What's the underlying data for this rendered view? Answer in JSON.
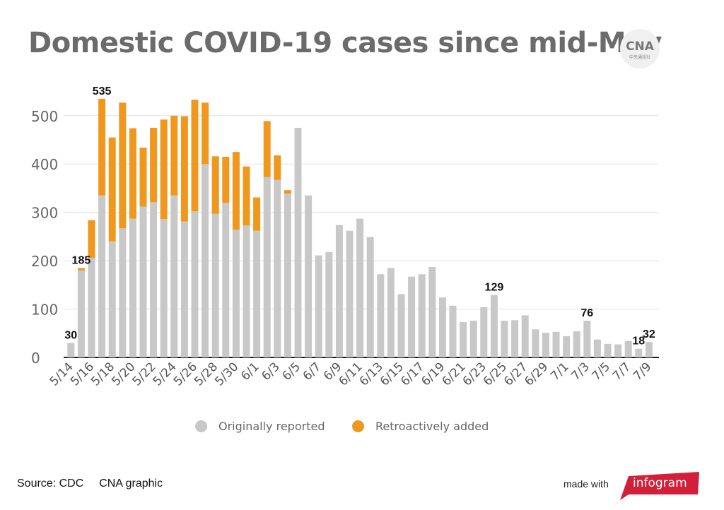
{
  "header": {
    "title": "Domestic COVID-19 cases since mid-May"
  },
  "logo": {
    "icon": "cna-logo-icon",
    "text": "CNA",
    "subtext": "中央通訊社"
  },
  "footer": {
    "source": "Source: CDC",
    "credit": "CNA graphic",
    "made_with": "made with",
    "brand": "infogram",
    "brand_color": "#d3203a"
  },
  "chart_data": {
    "type": "bar",
    "stacked": true,
    "title": "Domestic COVID-19 cases since mid-May",
    "xlabel": "",
    "ylabel": "",
    "ylim": [
      0,
      550
    ],
    "yticks": [
      0,
      100,
      200,
      300,
      400,
      500
    ],
    "grid": true,
    "legend_position": "bottom",
    "categories": [
      "5/14",
      "5/15",
      "5/16",
      "5/17",
      "5/18",
      "5/19",
      "5/20",
      "5/21",
      "5/22",
      "5/23",
      "5/24",
      "5/25",
      "5/26",
      "5/27",
      "5/28",
      "5/29",
      "5/30",
      "5/31",
      "6/1",
      "6/2",
      "6/3",
      "6/4",
      "6/5",
      "6/6",
      "6/7",
      "6/8",
      "6/9",
      "6/10",
      "6/11",
      "6/12",
      "6/13",
      "6/14",
      "6/15",
      "6/16",
      "6/17",
      "6/18",
      "6/19",
      "6/20",
      "6/21",
      "6/22",
      "6/23",
      "6/24",
      "6/25",
      "6/26",
      "6/27",
      "6/28",
      "6/29",
      "6/30",
      "7/1",
      "7/2",
      "7/3",
      "7/4",
      "7/5",
      "7/6",
      "7/7",
      "7/8",
      "7/9"
    ],
    "tick_labels": [
      "5/14",
      "5/16",
      "5/18",
      "5/20",
      "5/22",
      "5/24",
      "5/26",
      "5/28",
      "5/30",
      "6/1",
      "6/3",
      "6/5",
      "6/7",
      "6/9",
      "6/11",
      "6/13",
      "6/15",
      "6/17",
      "6/19",
      "6/21",
      "6/23",
      "6/25",
      "6/27",
      "6/29",
      "7/1",
      "7/3",
      "7/5",
      "7/7",
      "7/9"
    ],
    "series": [
      {
        "name": "Originally reported",
        "color": "#c8c8c8",
        "values": [
          30,
          180,
          206,
          335,
          240,
          267,
          287,
          312,
          321,
          286,
          335,
          281,
          302,
          400,
          297,
          320,
          264,
          273,
          262,
          373,
          367,
          339,
          475,
          335,
          211,
          218,
          274,
          262,
          287,
          249,
          172,
          185,
          131,
          167,
          172,
          187,
          124,
          107,
          73,
          76,
          104,
          129,
          76,
          77,
          87,
          58,
          51,
          53,
          44,
          54,
          76,
          37,
          28,
          27,
          34,
          18,
          32
        ]
      },
      {
        "name": "Retroactively added",
        "color": "#f0981e",
        "values": [
          0,
          5,
          78,
          200,
          215,
          260,
          187,
          122,
          154,
          206,
          165,
          218,
          231,
          127,
          119,
          95,
          161,
          122,
          69,
          116,
          51,
          7,
          0,
          0,
          0,
          0,
          0,
          0,
          0,
          0,
          0,
          0,
          0,
          0,
          0,
          0,
          0,
          0,
          0,
          0,
          0,
          0,
          0,
          0,
          0,
          0,
          0,
          0,
          0,
          0,
          0,
          0,
          0,
          0,
          0,
          0,
          0
        ]
      }
    ],
    "data_labels": [
      {
        "category": "5/14",
        "text": "30"
      },
      {
        "category": "5/15",
        "text": "185"
      },
      {
        "category": "5/17",
        "text": "535"
      },
      {
        "category": "6/24",
        "text": "129"
      },
      {
        "category": "7/3",
        "text": "76"
      },
      {
        "category": "7/8",
        "text": "18"
      },
      {
        "category": "7/9",
        "text": "32"
      }
    ]
  }
}
